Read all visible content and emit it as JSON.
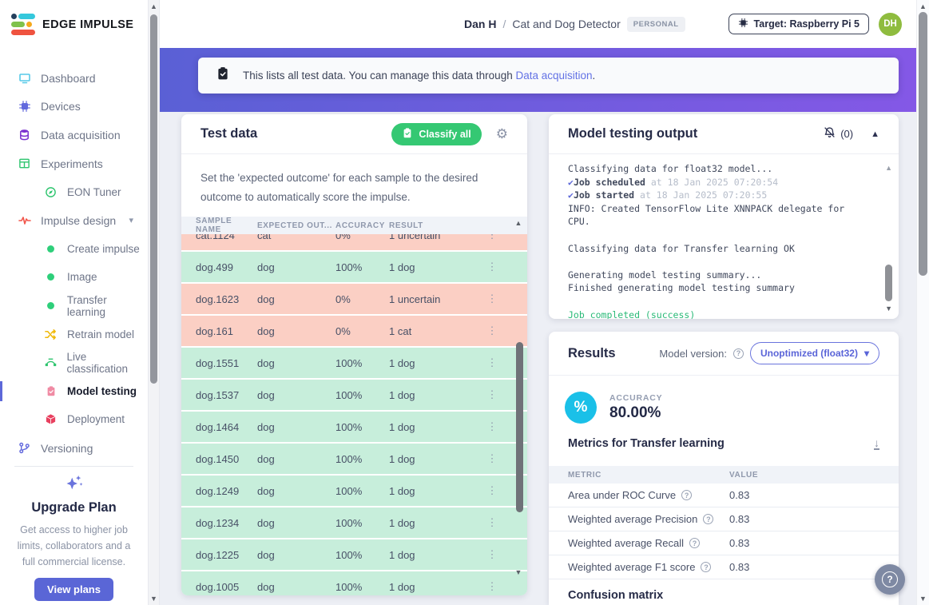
{
  "header": {
    "breadcrumb_user": "Dan H",
    "breadcrumb_sep": "/",
    "breadcrumb_project": "Cat and Dog Detector",
    "badge": "PERSONAL",
    "target_button": "Target: Raspberry Pi 5",
    "avatar_initials": "DH"
  },
  "banner": {
    "text_before_link": "This lists all test data. You can manage this data through ",
    "link_text": "Data acquisition",
    "text_after_link": "."
  },
  "sidebar": {
    "logo_text": "EDGE IMPULSE",
    "items": [
      {
        "label": "Dashboard",
        "icon": "monitor-icon",
        "icon_color": "#56c9e8",
        "indent": 0
      },
      {
        "label": "Devices",
        "icon": "chip-icon",
        "icon_color": "#6168dd",
        "indent": 0
      },
      {
        "label": "Data acquisition",
        "icon": "database-icon",
        "icon_color": "#7a30cf",
        "indent": 0
      },
      {
        "label": "Experiments",
        "icon": "grid-icon",
        "icon_color": "#2fc56f",
        "indent": 0
      },
      {
        "label": "EON Tuner",
        "icon": "compass-icon",
        "icon_color": "#2fc56f",
        "indent": 1
      },
      {
        "label": "Impulse design",
        "icon": "waveform-icon",
        "icon_color": "#f2574c",
        "indent": 0,
        "chevron": "▾"
      },
      {
        "label": "Create impulse",
        "icon": "dot-icon",
        "icon_color": "#2ecf7a",
        "indent": 2
      },
      {
        "label": "Image",
        "icon": "dot-icon",
        "icon_color": "#2ecf7a",
        "indent": 2
      },
      {
        "label": "Transfer learning",
        "icon": "dot-icon",
        "icon_color": "#2ecf7a",
        "indent": 2
      },
      {
        "label": "Retrain model",
        "icon": "shuffle-icon",
        "icon_color": "#f0b90b",
        "indent": 2
      },
      {
        "label": "Live classification",
        "icon": "bezier-icon",
        "icon_color": "#2fc56f",
        "indent": 2
      },
      {
        "label": "Model testing",
        "icon": "clipboard-icon",
        "icon_color": "#f08ba4",
        "indent": 2,
        "active": true
      },
      {
        "label": "Deployment",
        "icon": "cube-icon",
        "icon_color": "#e8405f",
        "indent": 2
      },
      {
        "label": "Versioning",
        "icon": "branch-icon",
        "icon_color": "#6168dd",
        "indent": 0
      }
    ],
    "upgrade": {
      "title": "Upgrade Plan",
      "description": "Get access to higher job limits, collaborators and a full commercial license.",
      "button_label": "View plans"
    }
  },
  "test_data": {
    "title": "Test data",
    "classify_button": "Classify all",
    "description": "Set the 'expected outcome' for each sample to the desired outcome to automatically score the impulse.",
    "columns": [
      "SAMPLE NAME",
      "EXPECTED OUT...",
      "ACCURACY",
      "RESULT"
    ],
    "rows": [
      {
        "name": "cat.1124",
        "expected": "cat",
        "accuracy": "0%",
        "result": "1 uncertain",
        "status": "fail"
      },
      {
        "name": "dog.499",
        "expected": "dog",
        "accuracy": "100%",
        "result": "1 dog",
        "status": "pass"
      },
      {
        "name": "dog.1623",
        "expected": "dog",
        "accuracy": "0%",
        "result": "1 uncertain",
        "status": "fail"
      },
      {
        "name": "dog.161",
        "expected": "dog",
        "accuracy": "0%",
        "result": "1 cat",
        "status": "fail"
      },
      {
        "name": "dog.1551",
        "expected": "dog",
        "accuracy": "100%",
        "result": "1 dog",
        "status": "pass"
      },
      {
        "name": "dog.1537",
        "expected": "dog",
        "accuracy": "100%",
        "result": "1 dog",
        "status": "pass"
      },
      {
        "name": "dog.1464",
        "expected": "dog",
        "accuracy": "100%",
        "result": "1 dog",
        "status": "pass"
      },
      {
        "name": "dog.1450",
        "expected": "dog",
        "accuracy": "100%",
        "result": "1 dog",
        "status": "pass"
      },
      {
        "name": "dog.1249",
        "expected": "dog",
        "accuracy": "100%",
        "result": "1 dog",
        "status": "pass"
      },
      {
        "name": "dog.1234",
        "expected": "dog",
        "accuracy": "100%",
        "result": "1 dog",
        "status": "pass"
      },
      {
        "name": "dog.1225",
        "expected": "dog",
        "accuracy": "100%",
        "result": "1 dog",
        "status": "pass"
      },
      {
        "name": "dog.1005",
        "expected": "dog",
        "accuracy": "100%",
        "result": "1 dog",
        "status": "pass"
      }
    ]
  },
  "output": {
    "title": "Model testing output",
    "notification_count": "(0)",
    "collapse_glyph": "▲",
    "log_lines": [
      {
        "text": "Classifying data for float32 model..."
      },
      {
        "check": "✔",
        "bold": "Job scheduled",
        "dim": " at 18 Jan 2025 07:20:54"
      },
      {
        "check": "✔",
        "bold": "Job started",
        "dim": " at 18 Jan 2025 07:20:55"
      },
      {
        "text": "INFO: Created TensorFlow Lite XNNPACK delegate for CPU."
      },
      {
        "text": ""
      },
      {
        "text": "Classifying data for Transfer learning OK"
      },
      {
        "text": ""
      },
      {
        "text": "Generating model testing summary..."
      },
      {
        "text": "Finished generating model testing summary"
      },
      {
        "text": ""
      },
      {
        "text": "Job completed (success)",
        "type": "success"
      }
    ]
  },
  "results": {
    "title": "Results",
    "model_version_label": "Model version:",
    "model_version_value": "Unoptimized (float32)",
    "dropdown_glyph": "▾",
    "accuracy_label": "ACCURACY",
    "accuracy_value": "80.00%",
    "accuracy_icon_glyph": "%",
    "metrics_title": "Metrics for Transfer learning",
    "metrics_columns": [
      "METRIC",
      "VALUE"
    ],
    "metrics_rows": [
      {
        "metric": "Area under ROC Curve",
        "value": "0.83"
      },
      {
        "metric": "Weighted average Precision",
        "value": "0.83"
      },
      {
        "metric": "Weighted average Recall",
        "value": "0.83"
      },
      {
        "metric": "Weighted average F1 score",
        "value": "0.83"
      }
    ],
    "confusion_title": "Confusion matrix"
  },
  "colors": {
    "band_gradient_from": "#5a60d5",
    "band_gradient_to": "#8458e6",
    "accent_indigo": "#5d68d9",
    "classify_green": "#35c873",
    "row_pass": "#c7eedb",
    "row_fail": "#fbcfc4",
    "accuracy_circle": "#1ac0e8",
    "link_blue": "#6372e5",
    "log_success_green": "#2aba78",
    "avatar_green": "#8fbc3f"
  },
  "misc": {
    "help_fab_glyph": "?",
    "gear_glyph": "⚙",
    "kebab_glyph": "⋮",
    "download_glyph": "↓"
  }
}
